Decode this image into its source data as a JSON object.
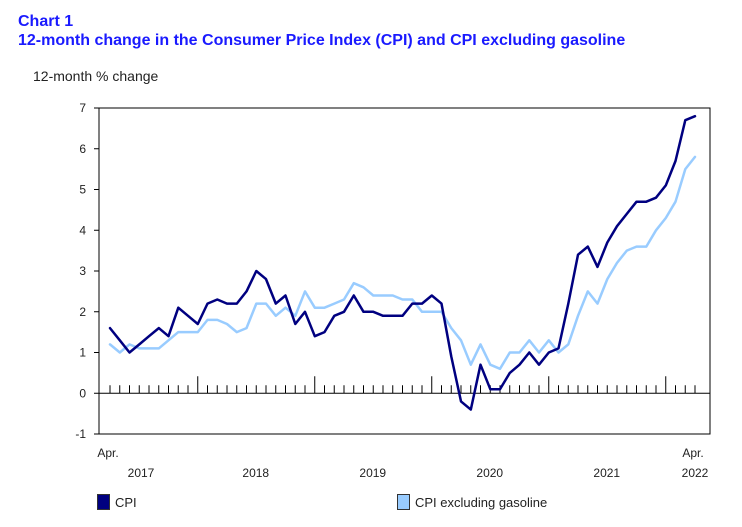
{
  "chart_label": "Chart 1",
  "chart_data": {
    "type": "line",
    "title": "12-month change in the Consumer Price Index (CPI) and CPI excluding gasoline",
    "ylabel": "12-month % change",
    "xlabel": "",
    "ylim": [
      -1,
      7
    ],
    "yticks": [
      -1,
      0,
      1,
      2,
      3,
      4,
      5,
      6,
      7
    ],
    "x_start_label": "Apr.",
    "x_end_label": "Apr.",
    "year_labels": [
      "2017",
      "2018",
      "2019",
      "2020",
      "2021",
      "2022"
    ],
    "x_range": [
      "2017-04",
      "2022-04"
    ],
    "grid": false,
    "legend_position": "bottom",
    "series": [
      {
        "name": "CPI",
        "color": "#000080",
        "values": [
          1.6,
          1.3,
          1.0,
          1.2,
          1.4,
          1.6,
          1.4,
          2.1,
          1.9,
          1.7,
          2.2,
          2.3,
          2.2,
          2.2,
          2.5,
          3.0,
          2.8,
          2.2,
          2.4,
          1.7,
          2.0,
          1.4,
          1.5,
          1.9,
          2.0,
          2.4,
          2.0,
          2.0,
          1.9,
          1.9,
          1.9,
          2.2,
          2.2,
          2.4,
          2.2,
          0.9,
          -0.2,
          -0.4,
          0.7,
          0.1,
          0.1,
          0.5,
          0.7,
          1.0,
          0.7,
          1.0,
          1.1,
          2.2,
          3.4,
          3.6,
          3.1,
          3.7,
          4.1,
          4.4,
          4.7,
          4.7,
          4.8,
          5.1,
          5.7,
          6.7,
          6.8
        ]
      },
      {
        "name": "CPI excluding gasoline",
        "color": "#99ccff",
        "values": [
          1.2,
          1.0,
          1.2,
          1.1,
          1.1,
          1.1,
          1.3,
          1.5,
          1.5,
          1.5,
          1.8,
          1.8,
          1.7,
          1.5,
          1.6,
          2.2,
          2.2,
          1.9,
          2.1,
          1.9,
          2.5,
          2.1,
          2.1,
          2.2,
          2.3,
          2.7,
          2.6,
          2.4,
          2.4,
          2.4,
          2.3,
          2.3,
          2.0,
          2.0,
          2.0,
          1.6,
          1.3,
          0.7,
          1.2,
          0.7,
          0.6,
          1.0,
          1.0,
          1.3,
          1.0,
          1.3,
          1.0,
          1.2,
          1.9,
          2.5,
          2.2,
          2.8,
          3.2,
          3.5,
          3.6,
          3.6,
          4.0,
          4.3,
          4.7,
          5.5,
          5.8
        ]
      }
    ]
  }
}
